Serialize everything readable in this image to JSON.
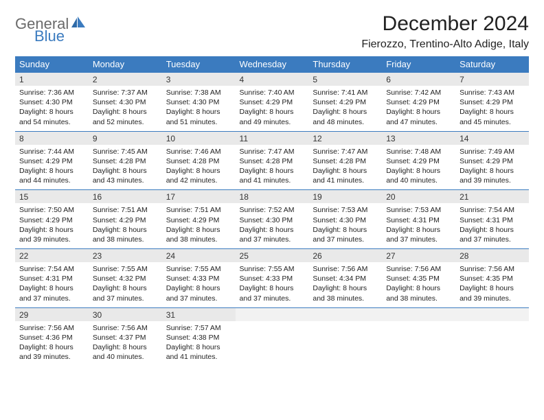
{
  "brand": {
    "part1": "General",
    "part2": "Blue"
  },
  "title": "December 2024",
  "location": "Fierozzo, Trentino-Alto Adige, Italy",
  "colors": {
    "accent": "#3b7bbf",
    "header_bg": "#3b7bbf",
    "header_text": "#ffffff",
    "daynum_bg": "#e9e9e9",
    "rule": "#3b7bbf",
    "text": "#222222",
    "logo_gray": "#6a6a6a"
  },
  "calendar": {
    "type": "table",
    "columns": [
      "Sunday",
      "Monday",
      "Tuesday",
      "Wednesday",
      "Thursday",
      "Friday",
      "Saturday"
    ],
    "weeks": [
      [
        {
          "n": "1",
          "sr": "7:36 AM",
          "ss": "4:30 PM",
          "dh": "8",
          "dm": "54"
        },
        {
          "n": "2",
          "sr": "7:37 AM",
          "ss": "4:30 PM",
          "dh": "8",
          "dm": "52"
        },
        {
          "n": "3",
          "sr": "7:38 AM",
          "ss": "4:30 PM",
          "dh": "8",
          "dm": "51"
        },
        {
          "n": "4",
          "sr": "7:40 AM",
          "ss": "4:29 PM",
          "dh": "8",
          "dm": "49"
        },
        {
          "n": "5",
          "sr": "7:41 AM",
          "ss": "4:29 PM",
          "dh": "8",
          "dm": "48"
        },
        {
          "n": "6",
          "sr": "7:42 AM",
          "ss": "4:29 PM",
          "dh": "8",
          "dm": "47"
        },
        {
          "n": "7",
          "sr": "7:43 AM",
          "ss": "4:29 PM",
          "dh": "8",
          "dm": "45"
        }
      ],
      [
        {
          "n": "8",
          "sr": "7:44 AM",
          "ss": "4:29 PM",
          "dh": "8",
          "dm": "44"
        },
        {
          "n": "9",
          "sr": "7:45 AM",
          "ss": "4:28 PM",
          "dh": "8",
          "dm": "43"
        },
        {
          "n": "10",
          "sr": "7:46 AM",
          "ss": "4:28 PM",
          "dh": "8",
          "dm": "42"
        },
        {
          "n": "11",
          "sr": "7:47 AM",
          "ss": "4:28 PM",
          "dh": "8",
          "dm": "41"
        },
        {
          "n": "12",
          "sr": "7:47 AM",
          "ss": "4:28 PM",
          "dh": "8",
          "dm": "41"
        },
        {
          "n": "13",
          "sr": "7:48 AM",
          "ss": "4:29 PM",
          "dh": "8",
          "dm": "40"
        },
        {
          "n": "14",
          "sr": "7:49 AM",
          "ss": "4:29 PM",
          "dh": "8",
          "dm": "39"
        }
      ],
      [
        {
          "n": "15",
          "sr": "7:50 AM",
          "ss": "4:29 PM",
          "dh": "8",
          "dm": "39"
        },
        {
          "n": "16",
          "sr": "7:51 AM",
          "ss": "4:29 PM",
          "dh": "8",
          "dm": "38"
        },
        {
          "n": "17",
          "sr": "7:51 AM",
          "ss": "4:29 PM",
          "dh": "8",
          "dm": "38"
        },
        {
          "n": "18",
          "sr": "7:52 AM",
          "ss": "4:30 PM",
          "dh": "8",
          "dm": "37"
        },
        {
          "n": "19",
          "sr": "7:53 AM",
          "ss": "4:30 PM",
          "dh": "8",
          "dm": "37"
        },
        {
          "n": "20",
          "sr": "7:53 AM",
          "ss": "4:31 PM",
          "dh": "8",
          "dm": "37"
        },
        {
          "n": "21",
          "sr": "7:54 AM",
          "ss": "4:31 PM",
          "dh": "8",
          "dm": "37"
        }
      ],
      [
        {
          "n": "22",
          "sr": "7:54 AM",
          "ss": "4:31 PM",
          "dh": "8",
          "dm": "37"
        },
        {
          "n": "23",
          "sr": "7:55 AM",
          "ss": "4:32 PM",
          "dh": "8",
          "dm": "37"
        },
        {
          "n": "24",
          "sr": "7:55 AM",
          "ss": "4:33 PM",
          "dh": "8",
          "dm": "37"
        },
        {
          "n": "25",
          "sr": "7:55 AM",
          "ss": "4:33 PM",
          "dh": "8",
          "dm": "37"
        },
        {
          "n": "26",
          "sr": "7:56 AM",
          "ss": "4:34 PM",
          "dh": "8",
          "dm": "38"
        },
        {
          "n": "27",
          "sr": "7:56 AM",
          "ss": "4:35 PM",
          "dh": "8",
          "dm": "38"
        },
        {
          "n": "28",
          "sr": "7:56 AM",
          "ss": "4:35 PM",
          "dh": "8",
          "dm": "39"
        }
      ],
      [
        {
          "n": "29",
          "sr": "7:56 AM",
          "ss": "4:36 PM",
          "dh": "8",
          "dm": "39"
        },
        {
          "n": "30",
          "sr": "7:56 AM",
          "ss": "4:37 PM",
          "dh": "8",
          "dm": "40"
        },
        {
          "n": "31",
          "sr": "7:57 AM",
          "ss": "4:38 PM",
          "dh": "8",
          "dm": "41"
        },
        null,
        null,
        null,
        null
      ]
    ]
  },
  "labels": {
    "sunrise_prefix": "Sunrise: ",
    "sunset_prefix": "Sunset: ",
    "daylight_prefix": "Daylight: ",
    "hours_word": " hours",
    "and_word": "and ",
    "minutes_word": " minutes."
  }
}
